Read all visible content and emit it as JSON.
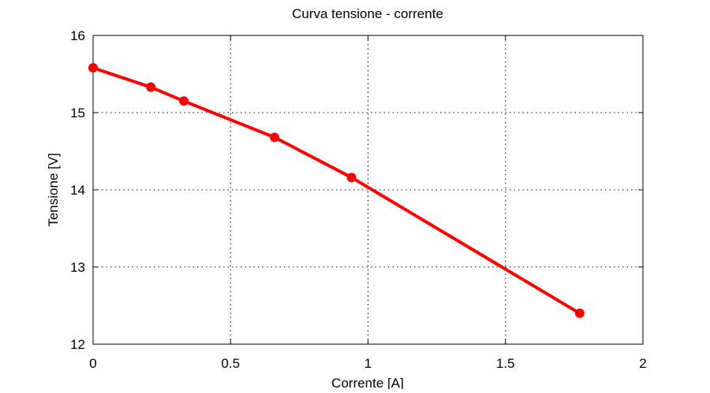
{
  "chart_data": {
    "type": "line",
    "title": "Curva tensione - corrente",
    "xlabel": "Corrente [A]",
    "ylabel": "Tensione [V]",
    "xlim": [
      0,
      2
    ],
    "ylim": [
      12,
      16
    ],
    "xticks": [
      0,
      0.5,
      1,
      1.5,
      2
    ],
    "yticks": [
      12,
      13,
      14,
      15,
      16
    ],
    "xtick_labels": [
      "0",
      "0.5",
      "1",
      "1.5",
      "2"
    ],
    "ytick_labels": [
      "12",
      "13",
      "14",
      "15",
      "16"
    ],
    "grid": true,
    "series": [
      {
        "color": "#ff0000",
        "marker": "circle",
        "x": [
          0,
          0.21,
          0.33,
          0.66,
          0.94,
          1.77
        ],
        "y": [
          15.58,
          15.33,
          15.15,
          14.68,
          14.16,
          12.4
        ]
      }
    ]
  }
}
